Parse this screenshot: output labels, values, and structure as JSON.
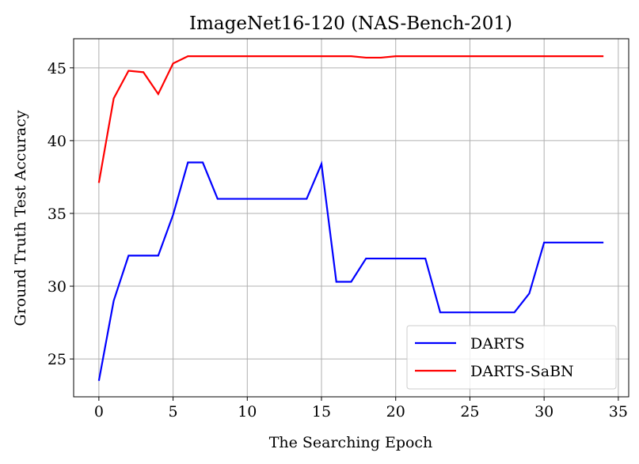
{
  "chart_data": {
    "type": "line",
    "title": "ImageNet16-120 (NAS-Bench-201)",
    "x_label": "The Searching Epoch",
    "y_label": "Ground Truth Test Accuracy",
    "x": [
      0,
      1,
      2,
      3,
      4,
      5,
      6,
      7,
      8,
      9,
      10,
      11,
      12,
      13,
      14,
      15,
      16,
      17,
      18,
      19,
      20,
      21,
      22,
      23,
      24,
      25,
      26,
      27,
      28,
      29,
      30,
      31,
      32,
      33,
      34
    ],
    "series": [
      {
        "name": "DARTS",
        "color": "#0000ff",
        "values": [
          23.5,
          29.0,
          32.1,
          32.1,
          32.1,
          34.9,
          38.5,
          38.5,
          36.0,
          36.0,
          36.0,
          36.0,
          36.0,
          36.0,
          36.0,
          38.4,
          30.3,
          30.3,
          31.9,
          31.9,
          31.9,
          31.9,
          31.9,
          28.2,
          28.2,
          28.2,
          28.2,
          28.2,
          28.2,
          29.5,
          33.0,
          33.0,
          33.0,
          33.0,
          33.0
        ]
      },
      {
        "name": "DARTS-SaBN",
        "color": "#ff0000",
        "values": [
          37.1,
          42.9,
          44.8,
          44.7,
          43.2,
          45.3,
          45.8,
          45.8,
          45.8,
          45.8,
          45.8,
          45.8,
          45.8,
          45.8,
          45.8,
          45.8,
          45.8,
          45.8,
          45.7,
          45.7,
          45.8,
          45.8,
          45.8,
          45.8,
          45.8,
          45.8,
          45.8,
          45.8,
          45.8,
          45.8,
          45.8,
          45.8,
          45.8,
          45.8,
          45.8
        ]
      }
    ],
    "xlim": [
      -1.7,
      35.7
    ],
    "ylim": [
      22.4,
      47.0
    ],
    "xticks": [
      0,
      5,
      10,
      15,
      20,
      25,
      30,
      35
    ],
    "yticks": [
      25,
      30,
      35,
      40,
      45
    ],
    "grid": true,
    "legend": "lower right"
  }
}
